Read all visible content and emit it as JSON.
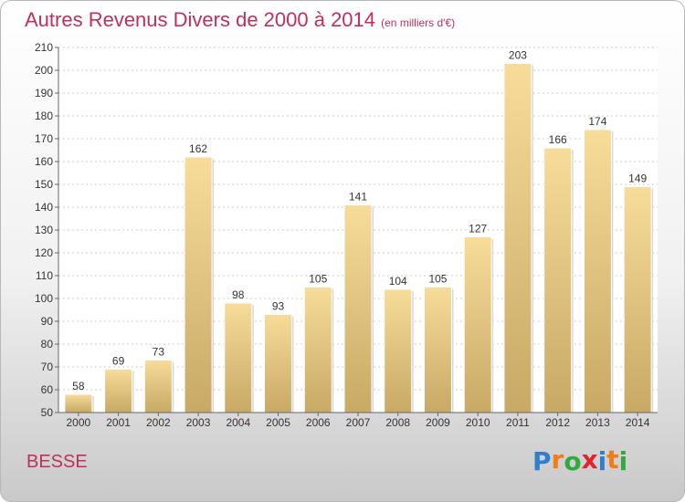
{
  "title": "Autres Revenus Divers de 2000 à 2014",
  "title_unit": "(en milliers d'€)",
  "commune": "BESSE",
  "logo_letters": [
    "P",
    "r",
    "o",
    "x",
    "i",
    "t",
    "i"
  ],
  "logo_colors": [
    "#2f7fd0",
    "#f07d18",
    "#2faa3c",
    "#e0262c",
    "#2f7fd0",
    "#f07d18",
    "#2faa3c"
  ],
  "chart_data": {
    "type": "bar",
    "title": "Autres Revenus Divers de 2000 à 2014",
    "ylabel": "",
    "xlabel": "",
    "ylim": [
      50,
      210
    ],
    "yticks": [
      50,
      60,
      70,
      80,
      90,
      100,
      110,
      120,
      130,
      140,
      150,
      160,
      170,
      180,
      190,
      200,
      210
    ],
    "categories": [
      "2000",
      "2001",
      "2002",
      "2003",
      "2004",
      "2005",
      "2006",
      "2007",
      "2008",
      "2009",
      "2010",
      "2011",
      "2012",
      "2013",
      "2014"
    ],
    "values": [
      58,
      69,
      73,
      162,
      98,
      93,
      105,
      141,
      104,
      105,
      127,
      203,
      166,
      174,
      149
    ],
    "grid": "horizontal dashed",
    "bar_color_top": "#f7dc9a",
    "bar_color_bottom": "#c8a966"
  }
}
